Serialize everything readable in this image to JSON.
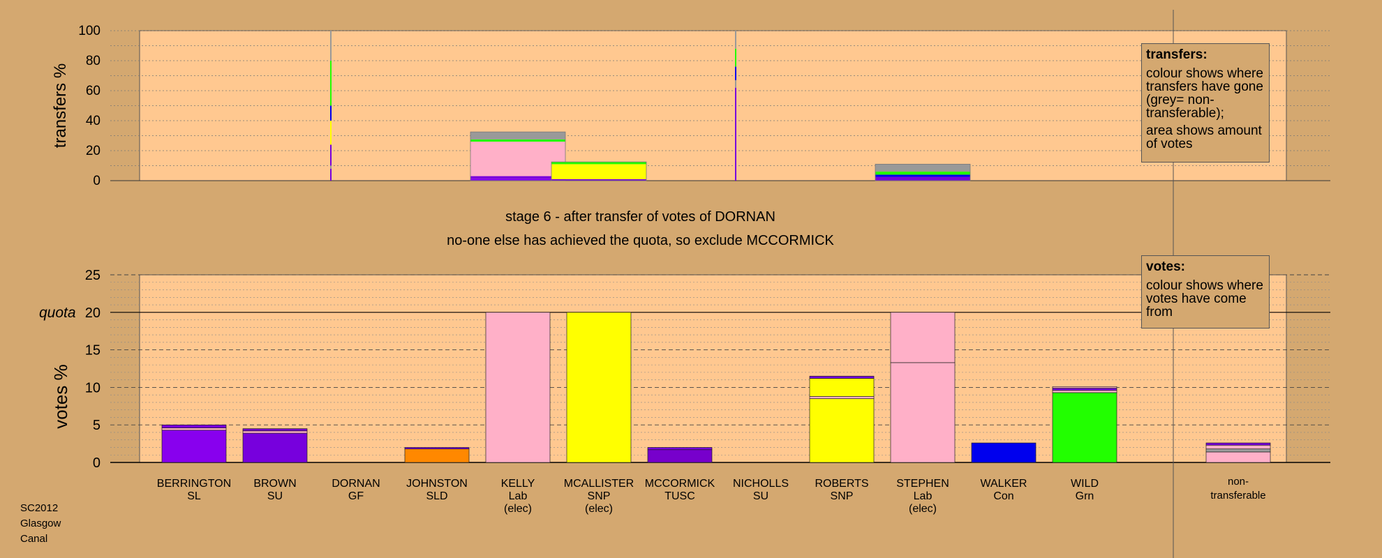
{
  "stage": {
    "line1": "stage 6 - after transfer of votes of DORNAN",
    "line2": "no-one else has achieved the quota, so exclude MCCORMICK"
  },
  "footer": {
    "line1": "SC2012",
    "line2": "Glasgow",
    "line3": "Canal"
  },
  "legend_transfers": {
    "title": "transfers:",
    "para1": "colour shows where transfers have gone (grey= non-transferable);",
    "para2": "area shows amount of votes"
  },
  "legend_votes": {
    "title": "votes:",
    "para1": "colour shows where votes have come from"
  },
  "colors": {
    "background": "#d4a870",
    "plot_area": "#ffc890",
    "SL": "#8800ee",
    "SU": "#7700dd",
    "GF": "#33cc33",
    "SLD": "#ff8800",
    "Lab": "#ffb0c8",
    "SNP": "#ffff00",
    "TUSC": "#7700cc",
    "Con": "#0000ee",
    "Grn": "#22ff00",
    "nontransferable": "#999999"
  },
  "chart_data": [
    {
      "type": "bar",
      "ylabel": "transfers %",
      "ylim": [
        0,
        100
      ],
      "yticks": [
        "0",
        "20",
        "40",
        "60",
        "80",
        "100"
      ],
      "grid": true,
      "transfer_lines": [
        {
          "x_index": 2,
          "segments": [
            {
              "from": 0,
              "to": 8,
              "color": "#7700dd"
            },
            {
              "from": 8,
              "to": 10,
              "color": "#999999"
            },
            {
              "from": 10,
              "to": 24,
              "color": "#7700dd"
            },
            {
              "from": 24,
              "to": 40,
              "color": "#ffff00"
            },
            {
              "from": 40,
              "to": 50,
              "color": "#0000ee"
            },
            {
              "from": 50,
              "to": 80,
              "color": "#22ff00"
            },
            {
              "from": 80,
              "to": 100,
              "color": "#999999"
            }
          ]
        },
        {
          "x_index": 7,
          "segments": [
            {
              "from": 0,
              "to": 62,
              "color": "#7700dd"
            },
            {
              "from": 62,
              "to": 67,
              "color": "#999999"
            },
            {
              "from": 67,
              "to": 76,
              "color": "#0000ee"
            },
            {
              "from": 76,
              "to": 88,
              "color": "#22ff00"
            },
            {
              "from": 88,
              "to": 100,
              "color": "#999999"
            }
          ]
        }
      ],
      "transfer_bars": [
        {
          "x_index": 4,
          "segments": [
            {
              "from": 0,
              "to": 1.5,
              "color": "#8800ee"
            },
            {
              "from": 1.5,
              "to": 3,
              "color": "#7700dd"
            },
            {
              "from": 3,
              "to": 26,
              "color": "#ffb0c8"
            },
            {
              "from": 26,
              "to": 27.5,
              "color": "#22ff00"
            },
            {
              "from": 27.5,
              "to": 32.5,
              "color": "#999999"
            }
          ]
        },
        {
          "x_index": 5,
          "segments": [
            {
              "from": 0,
              "to": 1,
              "color": "#7700dd"
            },
            {
              "from": 1,
              "to": 11,
              "color": "#ffff00"
            },
            {
              "from": 11,
              "to": 12.5,
              "color": "#22ff00"
            }
          ]
        },
        {
          "x_index": 9,
          "segments": [
            {
              "from": 0,
              "to": 2.5,
              "color": "#7700dd"
            },
            {
              "from": 2.5,
              "to": 4,
              "color": "#0000ee"
            },
            {
              "from": 4,
              "to": 6,
              "color": "#22ff00"
            },
            {
              "from": 6,
              "to": 11,
              "color": "#999999"
            }
          ]
        }
      ]
    },
    {
      "type": "bar",
      "ylabel": "votes %",
      "quota_label": "quota",
      "quota": 20,
      "ylim": [
        0,
        25
      ],
      "yticks": [
        "0",
        "5",
        "10",
        "15",
        "20",
        "25"
      ],
      "grid": true,
      "candidates": [
        {
          "name": "BERRINGTON",
          "party": "SL",
          "note": "",
          "segments": [
            {
              "to": 4.3,
              "color": "#8800ee"
            },
            {
              "to": 4.6,
              "color": "#ffb0c8"
            },
            {
              "to": 5.0,
              "color": "#7700dd"
            }
          ]
        },
        {
          "name": "BROWN",
          "party": "SU",
          "note": "",
          "segments": [
            {
              "to": 3.9,
              "color": "#7700dd"
            },
            {
              "to": 4.2,
              "color": "#ffb0c8"
            },
            {
              "to": 4.5,
              "color": "#7700cc"
            }
          ]
        },
        {
          "name": "DORNAN",
          "party": "GF",
          "note": "",
          "segments": []
        },
        {
          "name": "JOHNSTON",
          "party": "SLD",
          "note": "",
          "segments": [
            {
              "to": 1.8,
              "color": "#ff8800"
            },
            {
              "to": 2.0,
              "color": "#7700dd"
            }
          ]
        },
        {
          "name": "KELLY",
          "party": "Lab",
          "note": "(elec)",
          "segments": [
            {
              "to": 20,
              "color": "#ffb0c8"
            }
          ]
        },
        {
          "name": "MCALLISTER",
          "party": "SNP",
          "note": "(elec)",
          "segments": [
            {
              "to": 20,
              "color": "#ffff00"
            }
          ]
        },
        {
          "name": "MCCORMICK",
          "party": "TUSC",
          "note": "",
          "segments": [
            {
              "to": 1.7,
              "color": "#7700cc"
            },
            {
              "to": 2.0,
              "color": "#7700dd"
            }
          ]
        },
        {
          "name": "NICHOLLS",
          "party": "SU",
          "note": "",
          "segments": []
        },
        {
          "name": "ROBERTS",
          "party": "SNP",
          "note": "",
          "segments": [
            {
              "to": 8.5,
              "color": "#ffff00"
            },
            {
              "to": 8.8,
              "color": "#ffb0c8"
            },
            {
              "to": 11.2,
              "color": "#ffff00"
            },
            {
              "to": 11.5,
              "color": "#7700dd"
            }
          ]
        },
        {
          "name": "STEPHEN",
          "party": "Lab",
          "note": "(elec)",
          "segments": [
            {
              "to": 13.3,
              "color": "#ffb0c8"
            },
            {
              "to": 20,
              "color": "#ffb0c8"
            }
          ]
        },
        {
          "name": "WALKER",
          "party": "Con",
          "note": "",
          "segments": [
            {
              "to": 2.6,
              "color": "#0000ee"
            }
          ]
        },
        {
          "name": "WILD",
          "party": "Grn",
          "note": "",
          "segments": [
            {
              "to": 9.3,
              "color": "#22ff00"
            },
            {
              "to": 9.6,
              "color": "#ffb0c8"
            },
            {
              "to": 9.9,
              "color": "#7700dd"
            },
            {
              "to": 10.1,
              "color": "#ffb0c8"
            }
          ]
        }
      ],
      "nontransferable": {
        "label_line1": "non-",
        "label_line2": "transferable",
        "segments": [
          {
            "to": 1.4,
            "color": "#ffb0c8"
          },
          {
            "to": 1.8,
            "color": "#999999"
          },
          {
            "to": 2.3,
            "color": "#ffb0c8"
          },
          {
            "to": 2.6,
            "color": "#7700dd"
          }
        ]
      }
    }
  ]
}
